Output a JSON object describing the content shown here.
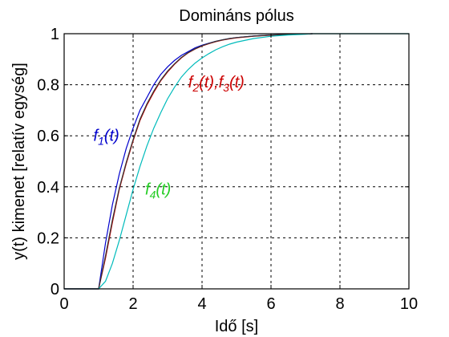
{
  "chart_data": {
    "type": "line",
    "title": "Domináns pólus",
    "xlabel": "Idő [s]",
    "ylabel": "y(t) kimenet [relatív egység]",
    "xlim": [
      0,
      10
    ],
    "ylim": [
      0,
      1
    ],
    "xticks": [
      0,
      2,
      4,
      6,
      8,
      10
    ],
    "yticks": [
      0,
      0.2,
      0.4,
      0.6,
      0.8,
      1
    ],
    "ytick_labels": [
      "0",
      "0.2",
      "0.4",
      "0.6",
      "0.8",
      "1"
    ],
    "grid": true,
    "series": [
      {
        "color": "#0000cc",
        "x": [
          0,
          1.0,
          1.2,
          1.4,
          1.6,
          1.8,
          2.0,
          2.2,
          2.4,
          2.6,
          2.8,
          3.0,
          3.2,
          3.4,
          3.6,
          3.8,
          4.0,
          4.2,
          4.4,
          4.6,
          4.8,
          5.0,
          5.5,
          6.0,
          6.5,
          7.0,
          7.2
        ],
        "y": [
          0,
          0,
          0.18,
          0.33,
          0.45,
          0.55,
          0.63,
          0.7,
          0.75,
          0.8,
          0.84,
          0.87,
          0.895,
          0.915,
          0.93,
          0.945,
          0.955,
          0.963,
          0.97,
          0.976,
          0.981,
          0.985,
          0.991,
          0.995,
          0.997,
          0.999,
          1.0
        ]
      },
      {
        "color": "#cc0000",
        "x": [
          0,
          1.0,
          1.2,
          1.4,
          1.6,
          1.8,
          2.0,
          2.2,
          2.4,
          2.6,
          2.8,
          3.0,
          3.2,
          3.4,
          3.6,
          3.8,
          4.0,
          4.2,
          4.4,
          4.6,
          4.8,
          5.0,
          5.5,
          6.0,
          6.5,
          7.0,
          7.2
        ],
        "y": [
          0,
          0,
          0.12,
          0.26,
          0.39,
          0.49,
          0.58,
          0.66,
          0.72,
          0.77,
          0.815,
          0.85,
          0.88,
          0.905,
          0.925,
          0.94,
          0.952,
          0.961,
          0.969,
          0.975,
          0.98,
          0.984,
          0.99,
          0.994,
          0.997,
          0.999,
          1.0
        ]
      },
      {
        "color": "#333333",
        "x": [
          0,
          1.0,
          1.2,
          1.4,
          1.6,
          1.8,
          2.0,
          2.2,
          2.4,
          2.6,
          2.8,
          3.0,
          3.2,
          3.4,
          3.6,
          3.8,
          4.0,
          4.2,
          4.4,
          4.6,
          4.8,
          5.0,
          5.5,
          6.0,
          6.5,
          7.0,
          7.2
        ],
        "y": [
          0,
          0,
          0.13,
          0.27,
          0.395,
          0.495,
          0.585,
          0.665,
          0.725,
          0.775,
          0.818,
          0.853,
          0.882,
          0.907,
          0.926,
          0.941,
          0.953,
          0.962,
          0.97,
          0.976,
          0.981,
          0.985,
          0.991,
          0.995,
          0.997,
          0.999,
          1.0
        ]
      },
      {
        "color": "#00bbbb",
        "x": [
          0,
          1.0,
          1.2,
          1.4,
          1.6,
          1.8,
          2.0,
          2.2,
          2.4,
          2.6,
          2.8,
          3.0,
          3.2,
          3.4,
          3.6,
          3.8,
          4.0,
          4.2,
          4.4,
          4.6,
          4.8,
          5.0,
          5.5,
          6.0,
          6.5,
          7.0,
          7.2
        ],
        "y": [
          0,
          0,
          0.03,
          0.1,
          0.19,
          0.29,
          0.39,
          0.48,
          0.56,
          0.63,
          0.69,
          0.745,
          0.79,
          0.83,
          0.86,
          0.885,
          0.905,
          0.922,
          0.937,
          0.949,
          0.959,
          0.967,
          0.981,
          0.99,
          0.995,
          0.998,
          1.0
        ]
      },
      {
        "color": "#00bbbb",
        "x": [
          7.2,
          10
        ],
        "y": [
          1.0,
          1.0
        ]
      }
    ],
    "annotations": [
      {
        "base": "f",
        "sub": "1",
        "suffix": "(t)",
        "color": "#0000cc",
        "x": 0.85,
        "y": 0.58
      },
      {
        "base": "f",
        "sub": "2",
        "suffix": "(t),",
        "base2": "f",
        "sub2": "3",
        "suffix2": "(t)",
        "color": "#cc0000",
        "x": 3.6,
        "y": 0.79
      },
      {
        "base": "f",
        "sub": "4",
        "suffix": "(t)",
        "color": "#22cc22",
        "x": 2.35,
        "y": 0.37
      }
    ]
  }
}
